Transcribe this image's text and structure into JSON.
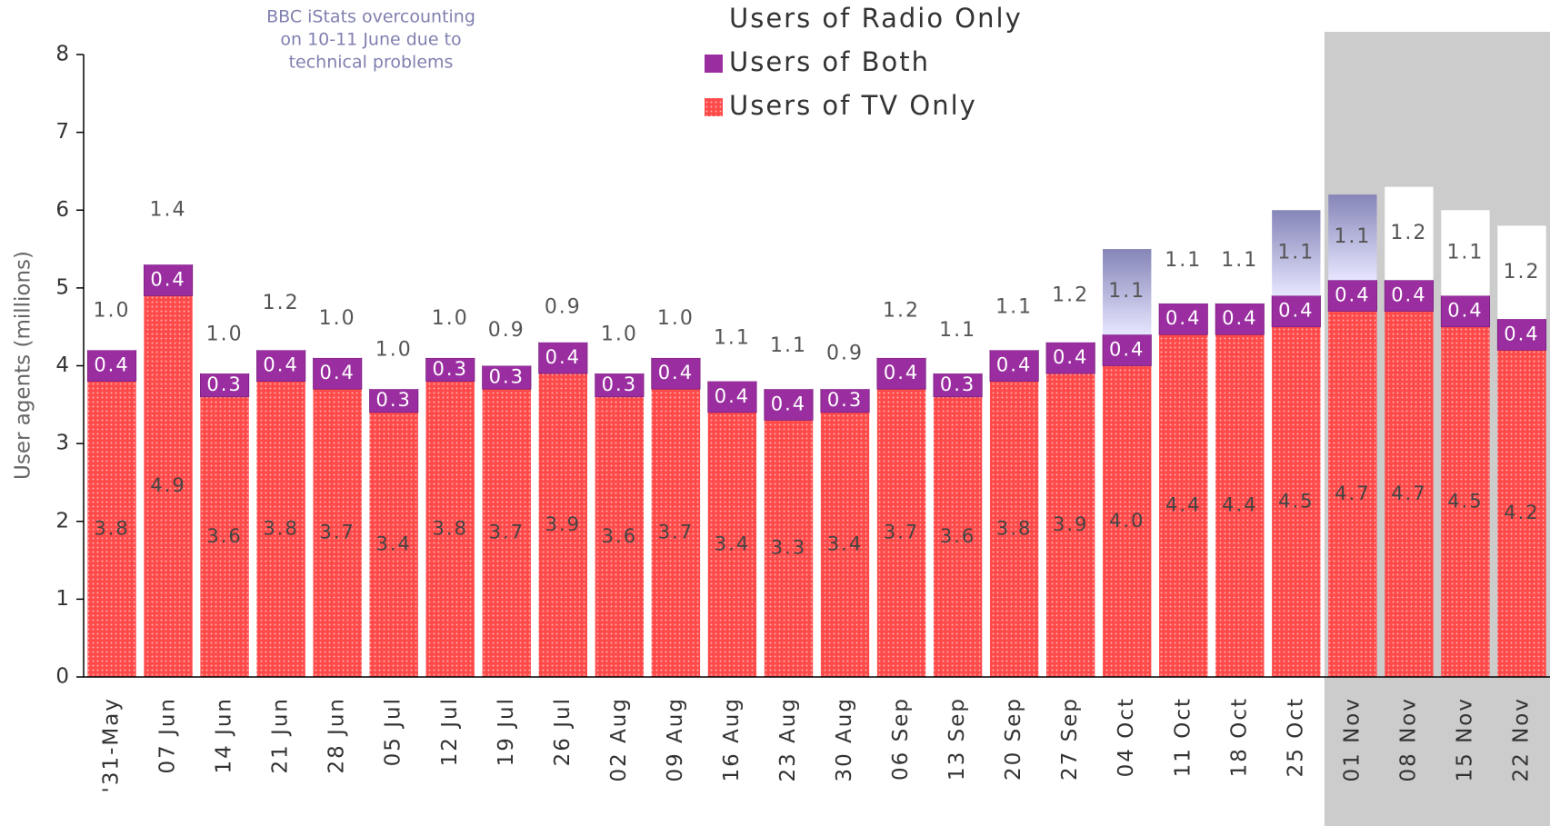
{
  "chart_data": {
    "type": "stacked_bar",
    "y_label": "User agents (millions)",
    "annotation": [
      "BBC iStats overcounting",
      "on 10-11 June due to",
      "technical problems"
    ],
    "categories": [
      "'31-May",
      "07 Jun",
      "14 Jun",
      "21 Jun",
      "28 Jun",
      "05 Jul",
      "12 Jul",
      "19 Jul",
      "26 Jul",
      "02 Aug",
      "09 Aug",
      "16 Aug",
      "23 Aug",
      "30 Aug",
      "06 Sep",
      "13 Sep",
      "20 Sep",
      "27 Sep",
      "04 Oct",
      "11 Oct",
      "18 Oct",
      "25 Oct",
      "01 Nov",
      "08 Nov",
      "15 Nov",
      "22 Nov"
    ],
    "shaded_categories": [
      "01 Nov",
      "08 Nov",
      "15 Nov",
      "22 Nov"
    ],
    "shade_color": "#cccccc",
    "ylim": [
      0,
      8
    ],
    "yticks": [
      0,
      1,
      2,
      3,
      4,
      5,
      6,
      7,
      8
    ],
    "series": [
      {
        "name": "Users of TV Only",
        "color": "#ff4a4a",
        "pattern": "dots",
        "values": [
          3.8,
          4.9,
          3.6,
          3.8,
          3.7,
          3.4,
          3.8,
          3.7,
          3.9,
          3.6,
          3.7,
          3.4,
          3.3,
          3.4,
          3.7,
          3.6,
          3.8,
          3.9,
          4.0,
          4.4,
          4.4,
          4.5,
          4.7,
          4.7,
          4.5,
          4.2
        ],
        "value_labels": [
          "3.8",
          "4.9",
          "3.6",
          "3.8",
          "3.7",
          "3.4",
          "3.8",
          "3.7",
          "3.9",
          "3.6",
          "3.7",
          "3.4",
          "3.3",
          "3.4",
          "3.7",
          "3.6",
          "3.8",
          "3.9",
          "4.0",
          "4.4",
          "4.4",
          "4.5",
          "4.7",
          "4.7",
          "4.5",
          "4.2"
        ]
      },
      {
        "name": "Users of Both",
        "color": "#9a2ea0",
        "values": [
          0.4,
          0.4,
          0.3,
          0.4,
          0.4,
          0.3,
          0.3,
          0.3,
          0.4,
          0.3,
          0.4,
          0.4,
          0.4,
          0.3,
          0.4,
          0.3,
          0.4,
          0.4,
          0.4,
          0.4,
          0.4,
          0.4,
          0.4,
          0.4,
          0.4,
          0.4
        ]
      },
      {
        "name": "Users of Radio Only",
        "color": "#ffffff",
        "point_colors": [
          "#ffffff",
          "#ffffff",
          "#ffffff",
          "#ffffff",
          "#ffffff",
          "#ffffff",
          "#ffffff",
          "#ffffff",
          "#ffffff",
          "#ffffff",
          "#ffffff",
          "#ffffff",
          "#ffffff",
          "#ffffff",
          "#ffffff",
          "#ffffff",
          "#ffffff",
          "#ffffff",
          "#8585b8",
          "#ffffff",
          "#ffffff",
          "#8585b8",
          "#8585b8",
          "#ffffff",
          "#ffffff",
          "#ffffff"
        ],
        "values": [
          1.0,
          1.4,
          1.0,
          1.2,
          1.0,
          1.0,
          1.0,
          0.9,
          0.9,
          1.0,
          1.0,
          1.1,
          1.1,
          0.9,
          1.2,
          1.1,
          1.1,
          1.2,
          1.1,
          1.1,
          1.1,
          1.1,
          1.1,
          1.2,
          1.1,
          1.2
        ],
        "value_labels": [
          "1.0",
          "1.4",
          "1.0",
          "1.2",
          "1.0",
          "1.0",
          "1.0",
          "0.9",
          "0.9",
          "1.0",
          "1.0",
          "1.1",
          "1.1",
          "0.9",
          "1.2",
          "1.1",
          "1.1",
          "1.2",
          "1.1",
          "1.1",
          "1.1",
          "1.1",
          "1.1",
          "1.2",
          "1.1",
          "1.2"
        ]
      }
    ]
  }
}
